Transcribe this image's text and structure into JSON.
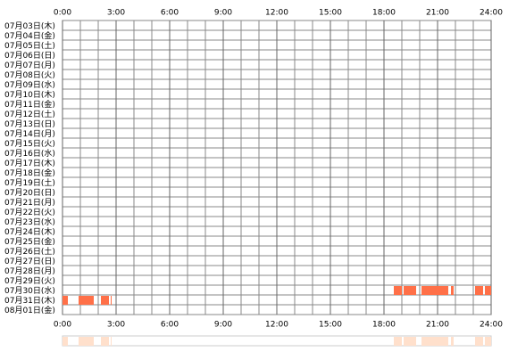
{
  "chart_data": {
    "type": "timeline",
    "categories": [
      "07月03日(木)",
      "07月04日(金)",
      "07月05日(土)",
      "07月06日(日)",
      "07月07日(月)",
      "07月08日(火)",
      "07月09日(水)",
      "07月10日(木)",
      "07月11日(金)",
      "07月12日(土)",
      "07月13日(日)",
      "07月14日(月)",
      "07月15日(火)",
      "07月16日(水)",
      "07月17日(木)",
      "07月18日(金)",
      "07月19日(土)",
      "07月20日(日)",
      "07月21日(月)",
      "07月22日(火)",
      "07月23日(水)",
      "07月24日(木)",
      "07月25日(金)",
      "07月26日(土)",
      "07月27日(日)",
      "07月28日(月)",
      "07月29日(火)",
      "07月30日(水)",
      "07月31日(木)",
      "08月01日(金)"
    ],
    "segments": [
      [],
      [],
      [],
      [],
      [],
      [],
      [],
      [],
      [],
      [],
      [],
      [],
      [],
      [],
      [],
      [],
      [],
      [],
      [],
      [],
      [],
      [],
      [],
      [],
      [],
      [],
      [],
      [
        [
          18.55,
          19
        ],
        [
          19.1,
          19.8
        ],
        [
          20.1,
          21.6
        ],
        [
          21.75,
          21.9
        ],
        [
          23.1,
          23.55
        ],
        [
          23.65,
          24
        ]
      ],
      [
        [
          0,
          0.3
        ],
        [
          0.9,
          1.75
        ],
        [
          2.15,
          2.6
        ],
        [
          2.7,
          2.75
        ]
      ],
      []
    ],
    "color": "#ff7048",
    "summary_color": "#ffe0cc",
    "xlim": [
      0,
      24
    ],
    "xticks": [
      {
        "value": 0,
        "label": "0:00"
      },
      {
        "value": 3,
        "label": "3:00"
      },
      {
        "value": 6,
        "label": "6:00"
      },
      {
        "value": 9,
        "label": "9:00"
      },
      {
        "value": 12,
        "label": "12:00"
      },
      {
        "value": 15,
        "label": "15:00"
      },
      {
        "value": 18,
        "label": "18:00"
      },
      {
        "value": 21,
        "label": "21:00"
      },
      {
        "value": 24,
        "label": "24:00"
      }
    ]
  }
}
